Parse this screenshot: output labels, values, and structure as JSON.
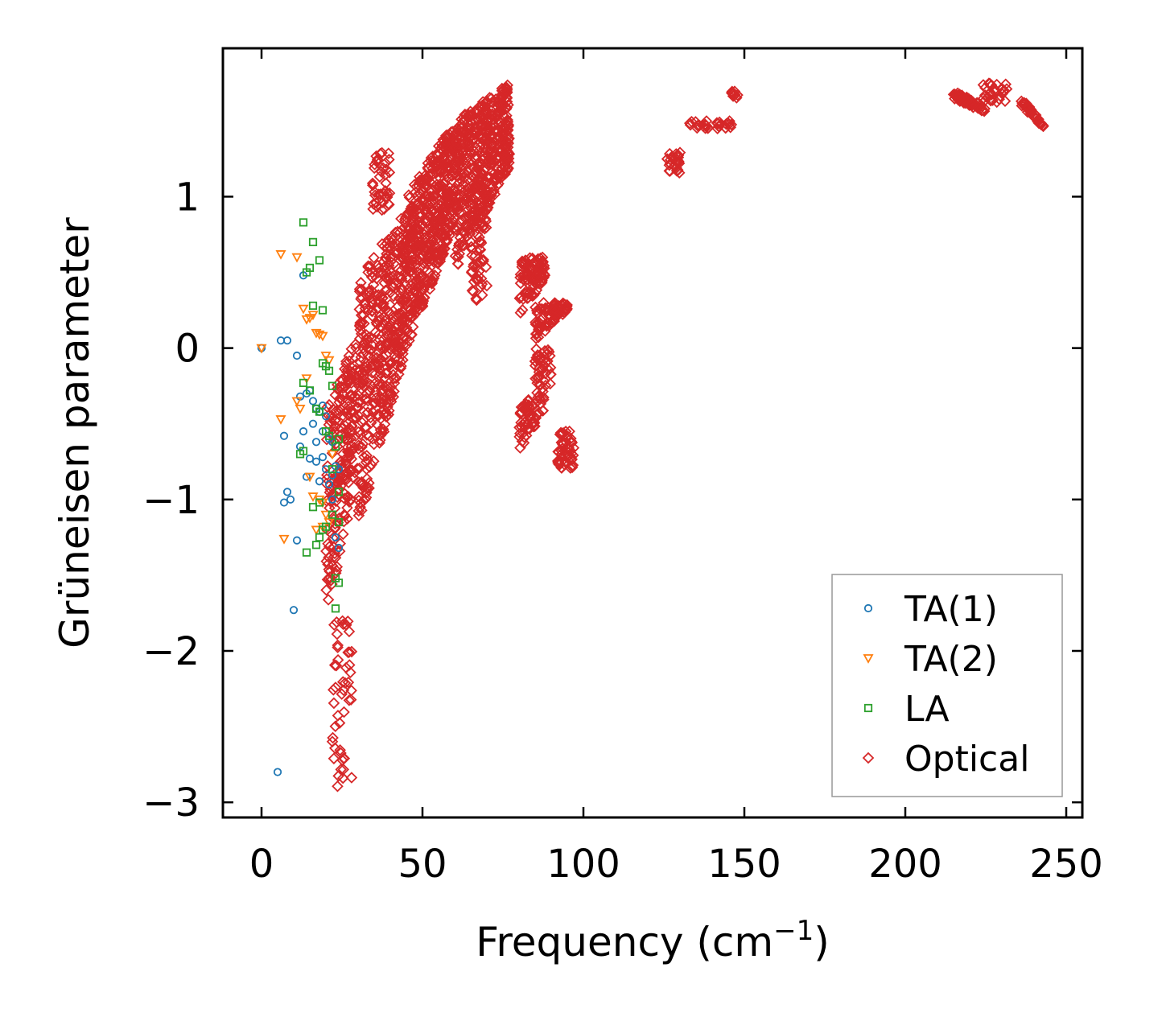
{
  "chart_data": {
    "type": "scatter",
    "title": "",
    "xlabel": "Frequency (cm",
    "xlabel_sup": "−1",
    "xlabel_end": ")",
    "ylabel": "Grüneisen parameter",
    "xlim": [
      -12,
      255
    ],
    "ylim": [
      -3.1,
      1.98
    ],
    "xticks": [
      0,
      50,
      100,
      150,
      200,
      250
    ],
    "yticks": [
      -3,
      -2,
      -1,
      0,
      1
    ],
    "xtick_labels": [
      "0",
      "50",
      "100",
      "150",
      "200",
      "250"
    ],
    "ytick_labels": [
      "−3",
      "−2",
      "−1",
      "0",
      "1"
    ],
    "legend_position": "lower-right",
    "series": [
      {
        "name": "TA(1)",
        "label": "TA(1)",
        "marker": "circle",
        "color": "#1f77b4",
        "x": [
          0,
          6,
          8,
          11,
          13,
          12,
          15,
          16,
          17,
          18,
          19,
          21,
          22,
          23,
          24,
          7,
          8,
          10,
          12,
          14,
          15,
          17,
          18,
          19,
          20,
          21,
          22,
          11,
          7,
          9,
          5,
          13,
          14,
          16,
          17,
          20,
          22,
          19,
          23,
          24,
          18
        ],
        "y": [
          0.0,
          0.05,
          0.05,
          -0.05,
          0.48,
          -0.32,
          -0.28,
          -0.35,
          -0.4,
          -0.42,
          -0.55,
          -0.6,
          -0.62,
          -0.78,
          -0.8,
          -0.58,
          -0.95,
          -1.73,
          -0.65,
          -0.85,
          -0.73,
          -0.75,
          -0.88,
          -0.72,
          -0.8,
          -0.9,
          -0.84,
          -1.27,
          -1.02,
          -1.0,
          -2.8,
          -0.55,
          -0.3,
          -0.5,
          -0.62,
          -0.45,
          -1.0,
          -0.38,
          -1.25,
          -1.32,
          -0.42
        ]
      },
      {
        "name": "TA(2)",
        "label": "TA(2)",
        "marker": "triangle-down",
        "color": "#ff7f0e",
        "x": [
          0,
          6,
          11,
          13,
          14,
          15,
          16,
          17,
          18,
          19,
          20,
          21,
          6,
          11,
          12,
          14,
          18,
          19,
          20,
          21,
          7,
          17,
          19,
          16,
          15,
          22
        ],
        "y": [
          0.0,
          0.62,
          0.6,
          0.26,
          0.19,
          0.2,
          0.22,
          0.1,
          0.09,
          0.08,
          -0.05,
          -0.08,
          -0.47,
          -0.35,
          -0.4,
          -0.2,
          -1.0,
          -1.02,
          -1.1,
          -1.15,
          -1.26,
          -1.2,
          -1.18,
          -0.98,
          -0.85,
          -0.7
        ]
      },
      {
        "name": "LA",
        "label": "LA",
        "marker": "square",
        "color": "#2ca02c",
        "x": [
          13,
          16,
          18,
          14,
          15,
          16,
          19,
          22,
          21,
          13,
          15,
          17,
          18,
          20,
          21,
          23,
          24,
          12,
          13,
          16,
          18,
          19,
          20,
          22,
          24,
          24,
          23,
          23,
          19,
          20,
          22,
          24,
          14,
          17,
          18
        ],
        "y": [
          0.83,
          0.7,
          0.58,
          0.5,
          0.53,
          0.28,
          0.25,
          -0.25,
          -0.15,
          -0.23,
          -0.28,
          -0.4,
          -0.42,
          -0.55,
          -0.58,
          -0.65,
          -0.6,
          -0.7,
          -0.68,
          -1.05,
          -1.02,
          -1.2,
          -1.18,
          -1.1,
          -1.15,
          -1.55,
          -1.52,
          -1.72,
          -0.1,
          -0.12,
          -0.8,
          -0.95,
          -1.35,
          -1.3,
          -1.25
        ]
      },
      {
        "name": "Optical",
        "label": "Optical",
        "marker": "diamond",
        "color": "#d62728",
        "x": [],
        "y": []
      }
    ]
  }
}
